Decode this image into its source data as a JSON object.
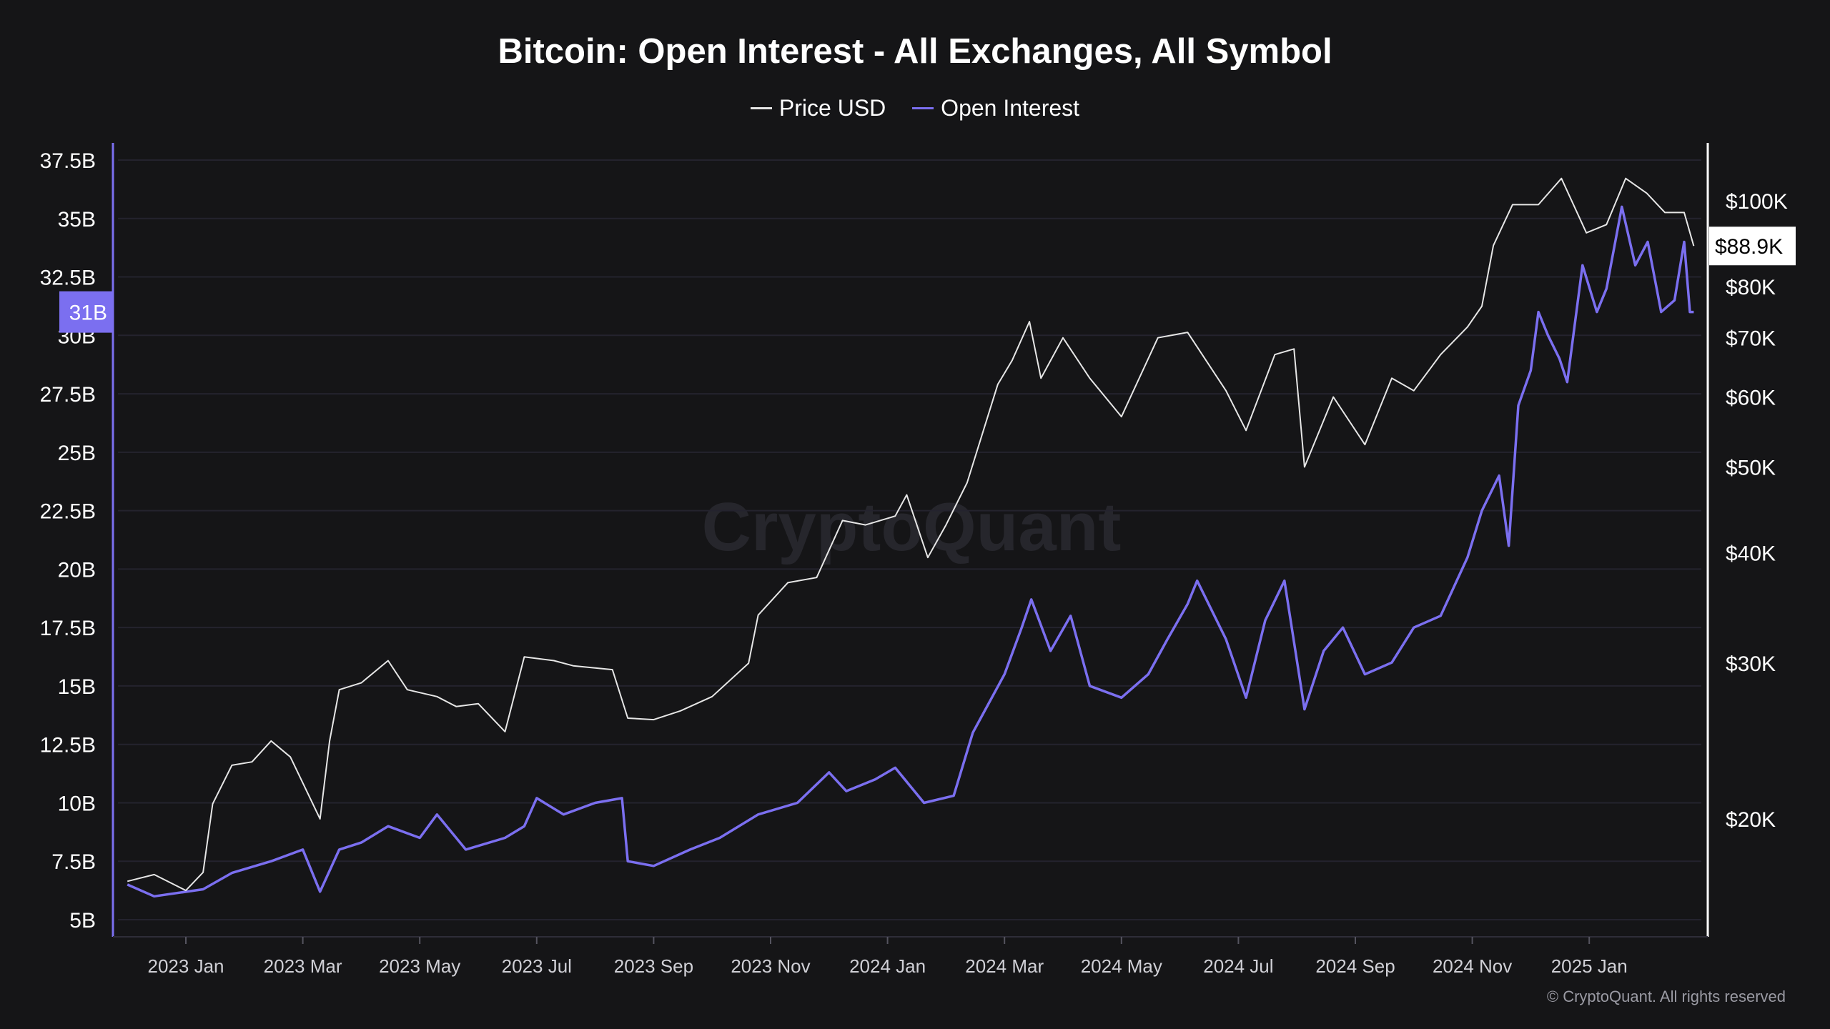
{
  "title": "Bitcoin: Open Interest - All Exchanges, All Symbol",
  "footer": "© CryptoQuant. All rights reserved",
  "watermark": "CryptoQuant",
  "chart_data": {
    "type": "line",
    "title": "Bitcoin: Open Interest - All Exchanges, All Symbol",
    "legend": [
      {
        "name": "Price USD",
        "color": "#e6e6e6"
      },
      {
        "name": "Open Interest",
        "color": "#7b6ff0"
      }
    ],
    "legend_position": "top-center",
    "grid": true,
    "x_ticks": [
      "2023 Jan",
      "2023 Mar",
      "2023 May",
      "2023 Jul",
      "2023 Sep",
      "2023 Nov",
      "2024 Jan",
      "2024 Mar",
      "2024 May",
      "2024 Jul",
      "2024 Sep",
      "2024 Nov",
      "2025 Jan"
    ],
    "left_axis": {
      "label": "Open Interest",
      "ylim": [
        5,
        37.5
      ],
      "ticks": [
        "5B",
        "7.5B",
        "10B",
        "12.5B",
        "15B",
        "17.5B",
        "20B",
        "22.5B",
        "25B",
        "27.5B",
        "30B",
        "32.5B",
        "35B",
        "37.5B"
      ],
      "current_label": "31B",
      "current_value": 31
    },
    "right_axis": {
      "label": "Price USD",
      "scale": "log",
      "ticks": [
        {
          "label": "$20K",
          "value": 20
        },
        {
          "label": "$30K",
          "value": 30
        },
        {
          "label": "$40K",
          "value": 40
        },
        {
          "label": "$50K",
          "value": 50
        },
        {
          "label": "$60K",
          "value": 60
        },
        {
          "label": "$70K",
          "value": 70
        },
        {
          "label": "$80K",
          "value": 80
        },
        {
          "label": "$100K",
          "value": 100
        }
      ],
      "current_label": "$88.9K",
      "current_value": 88.9
    },
    "series": [
      {
        "name": "Price USD",
        "unit": "USD thousands",
        "points": [
          [
            "2022-12-01",
            17
          ],
          [
            "2022-12-15",
            17.3
          ],
          [
            "2023-01-01",
            16.6
          ],
          [
            "2023-01-10",
            17.4
          ],
          [
            "2023-01-15",
            20.8
          ],
          [
            "2023-01-25",
            23
          ],
          [
            "2023-02-05",
            23.2
          ],
          [
            "2023-02-15",
            24.5
          ],
          [
            "2023-02-25",
            23.5
          ],
          [
            "2023-03-10",
            20
          ],
          [
            "2023-03-15",
            24.5
          ],
          [
            "2023-03-20",
            28
          ],
          [
            "2023-04-01",
            28.5
          ],
          [
            "2023-04-15",
            30.2
          ],
          [
            "2023-04-25",
            28
          ],
          [
            "2023-05-10",
            27.5
          ],
          [
            "2023-05-20",
            26.8
          ],
          [
            "2023-06-01",
            27
          ],
          [
            "2023-06-15",
            25.1
          ],
          [
            "2023-06-25",
            30.5
          ],
          [
            "2023-07-10",
            30.2
          ],
          [
            "2023-07-20",
            29.8
          ],
          [
            "2023-08-10",
            29.5
          ],
          [
            "2023-08-18",
            26
          ],
          [
            "2023-09-01",
            25.9
          ],
          [
            "2023-09-15",
            26.5
          ],
          [
            "2023-10-01",
            27.5
          ],
          [
            "2023-10-20",
            30
          ],
          [
            "2023-10-25",
            34
          ],
          [
            "2023-11-10",
            37
          ],
          [
            "2023-11-25",
            37.5
          ],
          [
            "2023-12-08",
            43.5
          ],
          [
            "2023-12-20",
            43
          ],
          [
            "2024-01-05",
            44
          ],
          [
            "2024-01-11",
            46.5
          ],
          [
            "2024-01-22",
            39.5
          ],
          [
            "2024-02-01",
            43
          ],
          [
            "2024-02-12",
            48
          ],
          [
            "2024-02-28",
            62
          ],
          [
            "2024-03-05",
            66
          ],
          [
            "2024-03-14",
            73
          ],
          [
            "2024-03-20",
            63
          ],
          [
            "2024-04-01",
            70
          ],
          [
            "2024-04-15",
            63
          ],
          [
            "2024-05-01",
            57
          ],
          [
            "2024-05-20",
            70
          ],
          [
            "2024-06-05",
            71
          ],
          [
            "2024-06-25",
            61
          ],
          [
            "2024-07-05",
            55
          ],
          [
            "2024-07-20",
            67
          ],
          [
            "2024-07-30",
            68
          ],
          [
            "2024-08-05",
            50
          ],
          [
            "2024-08-20",
            60
          ],
          [
            "2024-09-06",
            53
          ],
          [
            "2024-09-20",
            63
          ],
          [
            "2024-10-01",
            61
          ],
          [
            "2024-10-15",
            67
          ],
          [
            "2024-10-29",
            72
          ],
          [
            "2024-11-06",
            76
          ],
          [
            "2024-11-12",
            89
          ],
          [
            "2024-11-22",
            99
          ],
          [
            "2024-12-05",
            99
          ],
          [
            "2024-12-17",
            106
          ],
          [
            "2024-12-30",
            92
          ],
          [
            "2025-01-10",
            94
          ],
          [
            "2025-01-20",
            106
          ],
          [
            "2025-01-31",
            102
          ],
          [
            "2025-02-10",
            97
          ],
          [
            "2025-02-20",
            97
          ],
          [
            "2025-02-25",
            88.9
          ]
        ]
      },
      {
        "name": "Open Interest",
        "unit": "USD billions",
        "points": [
          [
            "2022-12-01",
            6.5
          ],
          [
            "2022-12-15",
            6
          ],
          [
            "2023-01-10",
            6.3
          ],
          [
            "2023-01-25",
            7
          ],
          [
            "2023-02-15",
            7.5
          ],
          [
            "2023-03-01",
            8
          ],
          [
            "2023-03-10",
            6.2
          ],
          [
            "2023-03-20",
            8
          ],
          [
            "2023-04-01",
            8.3
          ],
          [
            "2023-04-15",
            9
          ],
          [
            "2023-05-01",
            8.5
          ],
          [
            "2023-05-10",
            9.5
          ],
          [
            "2023-05-25",
            8
          ],
          [
            "2023-06-15",
            8.5
          ],
          [
            "2023-06-25",
            9
          ],
          [
            "2023-07-01",
            10.2
          ],
          [
            "2023-07-15",
            9.5
          ],
          [
            "2023-08-01",
            10
          ],
          [
            "2023-08-15",
            10.2
          ],
          [
            "2023-08-18",
            7.5
          ],
          [
            "2023-09-01",
            7.3
          ],
          [
            "2023-09-20",
            8
          ],
          [
            "2023-10-05",
            8.5
          ],
          [
            "2023-10-25",
            9.5
          ],
          [
            "2023-11-15",
            10
          ],
          [
            "2023-12-01",
            11.3
          ],
          [
            "2023-12-10",
            10.5
          ],
          [
            "2023-12-25",
            11
          ],
          [
            "2024-01-05",
            11.5
          ],
          [
            "2024-01-20",
            10
          ],
          [
            "2024-02-05",
            10.3
          ],
          [
            "2024-02-15",
            13
          ],
          [
            "2024-03-01",
            15.5
          ],
          [
            "2024-03-10",
            17.5
          ],
          [
            "2024-03-15",
            18.7
          ],
          [
            "2024-03-25",
            16.5
          ],
          [
            "2024-04-05",
            18
          ],
          [
            "2024-04-15",
            15
          ],
          [
            "2024-05-01",
            14.5
          ],
          [
            "2024-05-15",
            15.5
          ],
          [
            "2024-05-25",
            17
          ],
          [
            "2024-06-05",
            18.5
          ],
          [
            "2024-06-10",
            19.5
          ],
          [
            "2024-06-25",
            17
          ],
          [
            "2024-07-05",
            14.5
          ],
          [
            "2024-07-15",
            17.8
          ],
          [
            "2024-07-25",
            19.5
          ],
          [
            "2024-08-05",
            14
          ],
          [
            "2024-08-15",
            16.5
          ],
          [
            "2024-08-25",
            17.5
          ],
          [
            "2024-09-06",
            15.5
          ],
          [
            "2024-09-20",
            16
          ],
          [
            "2024-10-01",
            17.5
          ],
          [
            "2024-10-15",
            18
          ],
          [
            "2024-10-29",
            20.5
          ],
          [
            "2024-11-06",
            22.5
          ],
          [
            "2024-11-15",
            24
          ],
          [
            "2024-11-20",
            21
          ],
          [
            "2024-11-25",
            27
          ],
          [
            "2024-12-01",
            28.5
          ],
          [
            "2024-12-05",
            31
          ],
          [
            "2024-12-10",
            30
          ],
          [
            "2024-12-16",
            29
          ],
          [
            "2024-12-20",
            28
          ],
          [
            "2024-12-28",
            33
          ],
          [
            "2025-01-05",
            31
          ],
          [
            "2025-01-10",
            32
          ],
          [
            "2025-01-18",
            35.5
          ],
          [
            "2025-01-25",
            33
          ],
          [
            "2025-02-01",
            34
          ],
          [
            "2025-02-08",
            31
          ],
          [
            "2025-02-15",
            31.5
          ],
          [
            "2025-02-20",
            34
          ],
          [
            "2025-02-23",
            31
          ],
          [
            "2025-02-25",
            31
          ]
        ]
      }
    ]
  }
}
